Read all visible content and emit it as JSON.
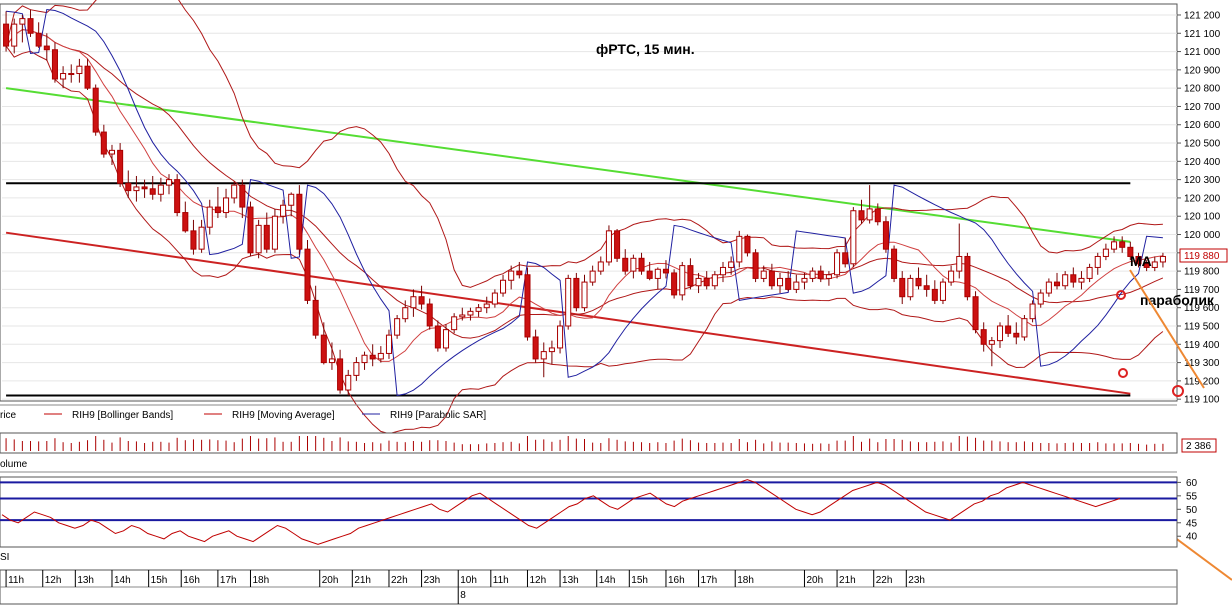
{
  "chart_data": {
    "type": "candlestick",
    "title": "фРТС,  15 мин.",
    "price_axis": {
      "ylim": [
        119090,
        121260
      ],
      "ticks": [
        "121 200",
        "121 100",
        "121 000",
        "120 900",
        "120 800",
        "120 700",
        "120 600",
        "120 500",
        "120 400",
        "120 300",
        "120 200",
        "120 100",
        "120 000",
        "119 900",
        "119 800",
        "119 700",
        "119 600",
        "119 500",
        "119 400",
        "119 300",
        "119 200",
        "119 100"
      ],
      "tick_values": [
        121200,
        121100,
        121000,
        120900,
        120800,
        120700,
        120600,
        120500,
        120400,
        120300,
        120200,
        120100,
        120000,
        119900,
        119800,
        119700,
        119600,
        119500,
        119400,
        119300,
        119200,
        119100
      ],
      "last_price_label": "119 880",
      "last_price": 119880
    },
    "legend": [
      {
        "label": "rice",
        "color": "#c00000"
      },
      {
        "label": "RIH9 [Bollinger Bands]",
        "color": "#c00000"
      },
      {
        "label": "RIH9 [Moving Average]",
        "color": "#c00000"
      },
      {
        "label": "RIH9 [Parabolic SAR]",
        "color": "#2020a0"
      }
    ],
    "candles": [
      [
        121150,
        121220,
        121000,
        121030
      ],
      [
        121030,
        121180,
        120990,
        121150
      ],
      [
        121150,
        121200,
        121050,
        121180
      ],
      [
        121180,
        121230,
        121080,
        121100
      ],
      [
        121100,
        121160,
        121020,
        121030
      ],
      [
        121030,
        121100,
        120950,
        121010
      ],
      [
        121010,
        121050,
        120830,
        120850
      ],
      [
        120850,
        120920,
        120800,
        120880
      ],
      [
        120880,
        120930,
        120830,
        120880
      ],
      [
        120880,
        120960,
        120830,
        120920
      ],
      [
        120920,
        120960,
        120790,
        120800
      ],
      [
        120800,
        120820,
        120540,
        120560
      ],
      [
        120560,
        120600,
        120420,
        120440
      ],
      [
        120440,
        120490,
        120380,
        120460
      ],
      [
        120460,
        120500,
        120260,
        120280
      ],
      [
        120280,
        120350,
        120200,
        120240
      ],
      [
        120240,
        120320,
        120180,
        120260
      ],
      [
        120260,
        120300,
        120200,
        120250
      ],
      [
        120250,
        120320,
        120190,
        120220
      ],
      [
        120220,
        120310,
        120180,
        120270
      ],
      [
        120270,
        120330,
        120220,
        120300
      ],
      [
        120300,
        120330,
        120100,
        120120
      ],
      [
        120120,
        120180,
        120010,
        120020
      ],
      [
        120020,
        120080,
        119890,
        119920
      ],
      [
        119920,
        120080,
        119900,
        120040
      ],
      [
        120040,
        120190,
        120000,
        120150
      ],
      [
        120150,
        120260,
        120090,
        120120
      ],
      [
        120120,
        120250,
        120090,
        120200
      ],
      [
        120200,
        120290,
        120170,
        120270
      ],
      [
        120270,
        120300,
        120090,
        120150
      ],
      [
        120150,
        120180,
        119880,
        119900
      ],
      [
        119900,
        120080,
        119870,
        120050
      ],
      [
        120050,
        120120,
        119900,
        119920
      ],
      [
        119920,
        120140,
        119900,
        120100
      ],
      [
        120100,
        120190,
        120060,
        120160
      ],
      [
        120160,
        120230,
        120100,
        120220
      ],
      [
        120220,
        120270,
        119890,
        119920
      ],
      [
        119920,
        119970,
        119620,
        119640
      ],
      [
        119640,
        119720,
        119430,
        119450
      ],
      [
        119450,
        119520,
        119290,
        119300
      ],
      [
        119300,
        119410,
        119260,
        119320
      ],
      [
        119320,
        119370,
        119130,
        119150
      ],
      [
        119150,
        119260,
        119120,
        119230
      ],
      [
        119230,
        119330,
        119200,
        119300
      ],
      [
        119300,
        119360,
        119260,
        119340
      ],
      [
        119340,
        119400,
        119280,
        119320
      ],
      [
        119320,
        119390,
        119300,
        119350
      ],
      [
        119350,
        119480,
        119320,
        119450
      ],
      [
        119450,
        119560,
        119430,
        119540
      ],
      [
        119540,
        119640,
        119520,
        119600
      ],
      [
        119600,
        119700,
        119550,
        119660
      ],
      [
        119660,
        119720,
        119590,
        119620
      ],
      [
        119620,
        119650,
        119480,
        119500
      ],
      [
        119500,
        119530,
        119360,
        119380
      ],
      [
        119380,
        119510,
        119360,
        119480
      ],
      [
        119480,
        119570,
        119460,
        119550
      ],
      [
        119550,
        119600,
        119530,
        119560
      ],
      [
        119560,
        119600,
        119530,
        119580
      ],
      [
        119580,
        119620,
        119550,
        119600
      ],
      [
        119600,
        119660,
        119570,
        119620
      ],
      [
        119620,
        119700,
        119600,
        119680
      ],
      [
        119680,
        119780,
        119660,
        119750
      ],
      [
        119750,
        119830,
        119700,
        119800
      ],
      [
        119800,
        119850,
        119760,
        119780
      ],
      [
        119780,
        119820,
        119420,
        119440
      ],
      [
        119440,
        119480,
        119300,
        119320
      ],
      [
        119320,
        119410,
        119220,
        119360
      ],
      [
        119360,
        119420,
        119290,
        119380
      ],
      [
        119380,
        119530,
        119350,
        119500
      ],
      [
        119500,
        119780,
        119480,
        119760
      ],
      [
        119760,
        119790,
        119580,
        119600
      ],
      [
        119600,
        119780,
        119580,
        119740
      ],
      [
        119740,
        119830,
        119720,
        119800
      ],
      [
        119800,
        119880,
        119780,
        119850
      ],
      [
        119850,
        120050,
        119830,
        120020
      ],
      [
        120020,
        120030,
        119850,
        119870
      ],
      [
        119870,
        119920,
        119780,
        119800
      ],
      [
        119800,
        119890,
        119760,
        119870
      ],
      [
        119870,
        119900,
        119780,
        119800
      ],
      [
        119800,
        119850,
        119750,
        119760
      ],
      [
        119760,
        119820,
        119700,
        119810
      ],
      [
        119810,
        119860,
        119760,
        119790
      ],
      [
        119790,
        119810,
        119650,
        119670
      ],
      [
        119670,
        119850,
        119640,
        119830
      ],
      [
        119830,
        119870,
        119700,
        119720
      ],
      [
        119720,
        119790,
        119680,
        119760
      ],
      [
        119760,
        119800,
        119700,
        119720
      ],
      [
        119720,
        119800,
        119700,
        119780
      ],
      [
        119780,
        119850,
        119740,
        119820
      ],
      [
        119820,
        119880,
        119780,
        119850
      ],
      [
        119850,
        120020,
        119820,
        119990
      ],
      [
        119990,
        120000,
        119880,
        119900
      ],
      [
        119900,
        119920,
        119740,
        119760
      ],
      [
        119760,
        119830,
        119740,
        119800
      ],
      [
        119800,
        119840,
        119700,
        119720
      ],
      [
        119720,
        119790,
        119680,
        119760
      ],
      [
        119760,
        119800,
        119690,
        119700
      ],
      [
        119700,
        119780,
        119680,
        119740
      ],
      [
        119740,
        119790,
        119700,
        119760
      ],
      [
        119760,
        119820,
        119740,
        119800
      ],
      [
        119800,
        119830,
        119740,
        119760
      ],
      [
        119760,
        119800,
        119720,
        119780
      ],
      [
        119780,
        119920,
        119760,
        119900
      ],
      [
        119900,
        119980,
        119820,
        119840
      ],
      [
        119840,
        120150,
        119820,
        120130
      ],
      [
        120130,
        120190,
        120060,
        120080
      ],
      [
        120080,
        120270,
        120060,
        120140
      ],
      [
        120140,
        120170,
        120050,
        120070
      ],
      [
        120070,
        120100,
        119900,
        119920
      ],
      [
        119920,
        119940,
        119740,
        119760
      ],
      [
        119760,
        119800,
        119620,
        119660
      ],
      [
        119660,
        119780,
        119640,
        119760
      ],
      [
        119760,
        119820,
        119700,
        119720
      ],
      [
        119720,
        119780,
        119660,
        119700
      ],
      [
        119700,
        119750,
        119620,
        119640
      ],
      [
        119640,
        119760,
        119620,
        119740
      ],
      [
        119740,
        119830,
        119720,
        119800
      ],
      [
        119800,
        120060,
        119760,
        119880
      ],
      [
        119880,
        119900,
        119640,
        119660
      ],
      [
        119660,
        119690,
        119460,
        119480
      ],
      [
        119480,
        119520,
        119360,
        119400
      ],
      [
        119400,
        119440,
        119280,
        119420
      ],
      [
        119420,
        119520,
        119380,
        119500
      ],
      [
        119500,
        119560,
        119440,
        119460
      ],
      [
        119460,
        119520,
        119400,
        119440
      ],
      [
        119440,
        119560,
        119420,
        119540
      ],
      [
        119540,
        119640,
        119520,
        119620
      ],
      [
        119620,
        119700,
        119600,
        119680
      ],
      [
        119680,
        119760,
        119660,
        119740
      ],
      [
        119740,
        119790,
        119700,
        119720
      ],
      [
        119720,
        119800,
        119700,
        119780
      ],
      [
        119780,
        119820,
        119710,
        119740
      ],
      [
        119740,
        119800,
        119700,
        119760
      ],
      [
        119760,
        119840,
        119740,
        119820
      ],
      [
        119820,
        119900,
        119780,
        119880
      ],
      [
        119880,
        119950,
        119860,
        119920
      ],
      [
        119920,
        119990,
        119900,
        119960
      ],
      [
        119960,
        119990,
        119900,
        119930
      ],
      [
        119930,
        119960,
        119860,
        119880
      ],
      [
        119880,
        119900,
        119820,
        119840
      ],
      [
        119840,
        119860,
        119800,
        119820
      ],
      [
        119820,
        119880,
        119800,
        119850
      ],
      [
        119850,
        119900,
        119820,
        119880
      ]
    ],
    "trendlines": [
      {
        "color": "#55dd33",
        "points": [
          [
            0,
            120800
          ],
          [
            138,
            119960
          ]
        ]
      },
      {
        "color": "#cc2222",
        "points": [
          [
            0,
            120010
          ],
          [
            138,
            119130
          ]
        ]
      },
      {
        "color": "#000000",
        "points": [
          [
            0,
            120280
          ],
          [
            138,
            120280
          ]
        ]
      },
      {
        "color": "#000000",
        "points": [
          [
            0,
            119120
          ],
          [
            138,
            119120
          ]
        ]
      }
    ],
    "annotations": [
      {
        "text": "MA",
        "color": "#000000"
      },
      {
        "text": "параболик",
        "color": "#000000"
      }
    ],
    "volume": {
      "label": "olume",
      "last_label": "2 386"
    },
    "rsi": {
      "label": "SI",
      "ylim": [
        36,
        62
      ],
      "ticks": [
        "60",
        "55",
        "50",
        "45",
        "40"
      ],
      "tick_values": [
        60,
        55,
        50,
        45,
        40
      ],
      "levels": [
        60,
        54,
        46
      ],
      "values": [
        48,
        46,
        45,
        47,
        49,
        48,
        47,
        45,
        44,
        43,
        44,
        46,
        45,
        43,
        41,
        42,
        44,
        43,
        41,
        40,
        39,
        41,
        42,
        40,
        39,
        38,
        40,
        41,
        42,
        40,
        39,
        38,
        40,
        42,
        44,
        43,
        41,
        39,
        38,
        37,
        38,
        39,
        40,
        41,
        43,
        44,
        45,
        46,
        47,
        48,
        49,
        50,
        51,
        52,
        50,
        49,
        51,
        53,
        55,
        56,
        54,
        52,
        50,
        48,
        46,
        44,
        43,
        45,
        47,
        49,
        51,
        52,
        54,
        55,
        53,
        51,
        50,
        52,
        54,
        55,
        56,
        54,
        52,
        51,
        53,
        54,
        55,
        56,
        57,
        58,
        59,
        60,
        61,
        60,
        58,
        56,
        54,
        52,
        50,
        49,
        48,
        49,
        51,
        53,
        55,
        57,
        58,
        59,
        60,
        59,
        57,
        55,
        53,
        51,
        49,
        48,
        47,
        46,
        48,
        50,
        52,
        53,
        55,
        56,
        58,
        59,
        60,
        59,
        58,
        57,
        56,
        55,
        54,
        53,
        52,
        51,
        52,
        53,
        54
      ]
    },
    "time_axis": {
      "hours": [
        "11h",
        "12h",
        "13h",
        "14h",
        "15h",
        "16h",
        "17h",
        "18h",
        "20h",
        "21h",
        "22h",
        "23h",
        "10h",
        "11h",
        "12h",
        "13h",
        "14h",
        "15h",
        "16h",
        "17h",
        "18h",
        "20h",
        "21h",
        "22h",
        "23h"
      ],
      "hour_index": [
        1,
        10,
        18,
        27,
        36,
        44,
        53,
        61,
        78,
        86,
        95,
        103,
        112,
        120,
        129,
        137,
        146,
        154,
        163,
        171,
        180,
        197,
        205,
        214,
        222
      ],
      "date_label": "8",
      "date_index": 112
    }
  }
}
